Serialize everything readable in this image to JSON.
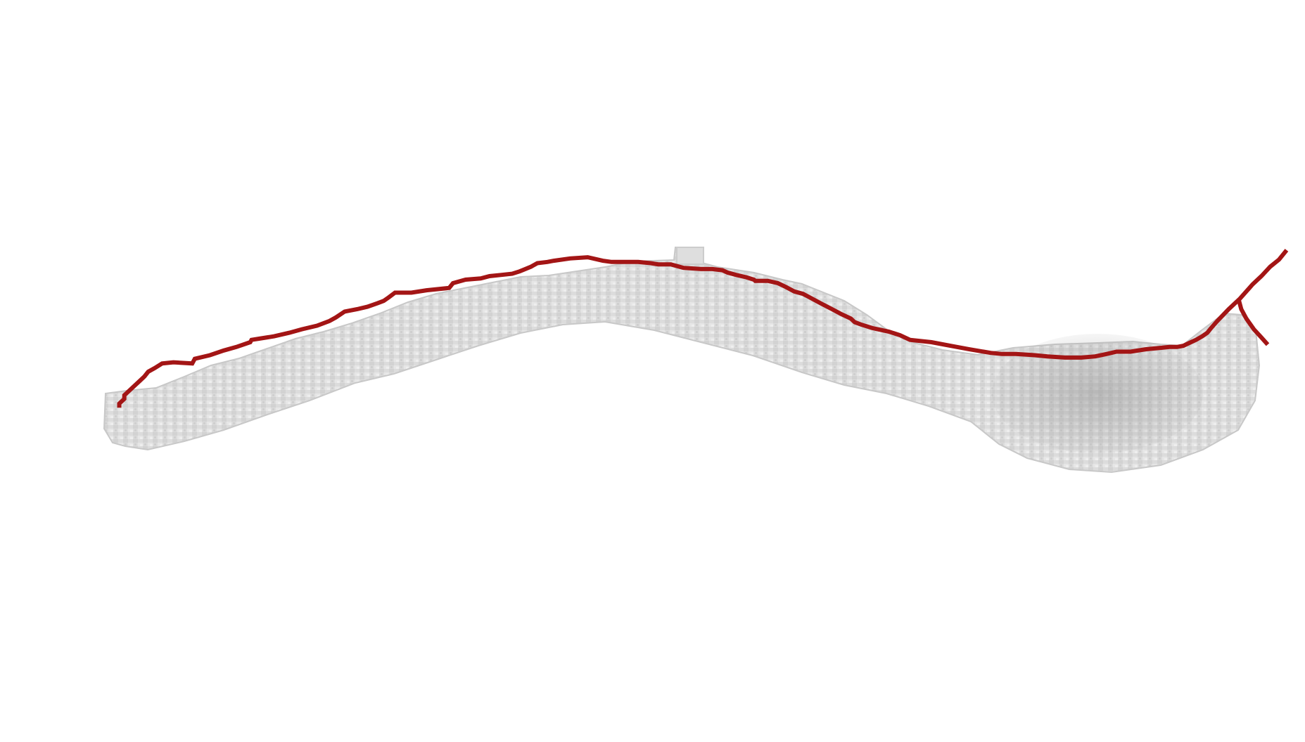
{
  "scene": {
    "background_color": "#ffffff",
    "mesh_color": "#d9d9d9",
    "mesh_shadow_color": "#bdbdbd",
    "skeleton_color": "#a31515"
  }
}
